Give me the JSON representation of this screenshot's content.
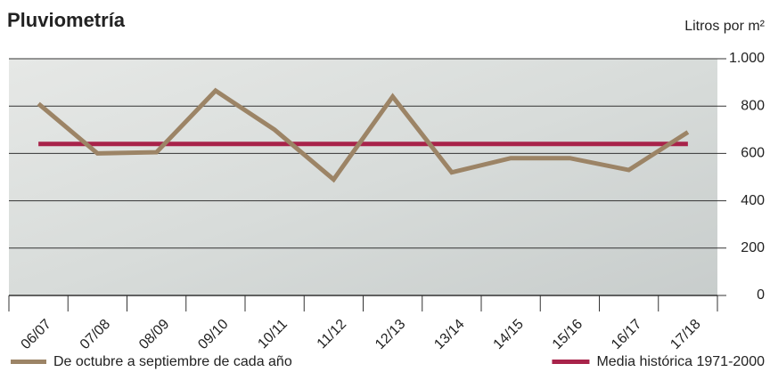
{
  "chart_data": {
    "type": "line",
    "title": "Pluviometría",
    "y_axis_label": "Litros por m²",
    "categories": [
      "06/07",
      "07/08",
      "08/09",
      "09/10",
      "10/11",
      "11/12",
      "12/13",
      "13/14",
      "14/15",
      "15/16",
      "16/17",
      "17/18"
    ],
    "series": [
      {
        "name": "De octubre a septiembre de cada año",
        "color": "#9c8466",
        "values": [
          810,
          600,
          605,
          865,
          700,
          490,
          840,
          520,
          580,
          580,
          530,
          690
        ]
      },
      {
        "name": "Media histórica 1971-2000",
        "color": "#a8234a",
        "values": [
          640,
          640,
          640,
          640,
          640,
          640,
          640,
          640,
          640,
          640,
          640,
          640
        ]
      }
    ],
    "ylim": [
      0,
      1000
    ],
    "yticks": [
      0,
      200,
      400,
      600,
      800,
      {
        "value": 1000,
        "label": "1.000"
      }
    ],
    "grid": true
  }
}
